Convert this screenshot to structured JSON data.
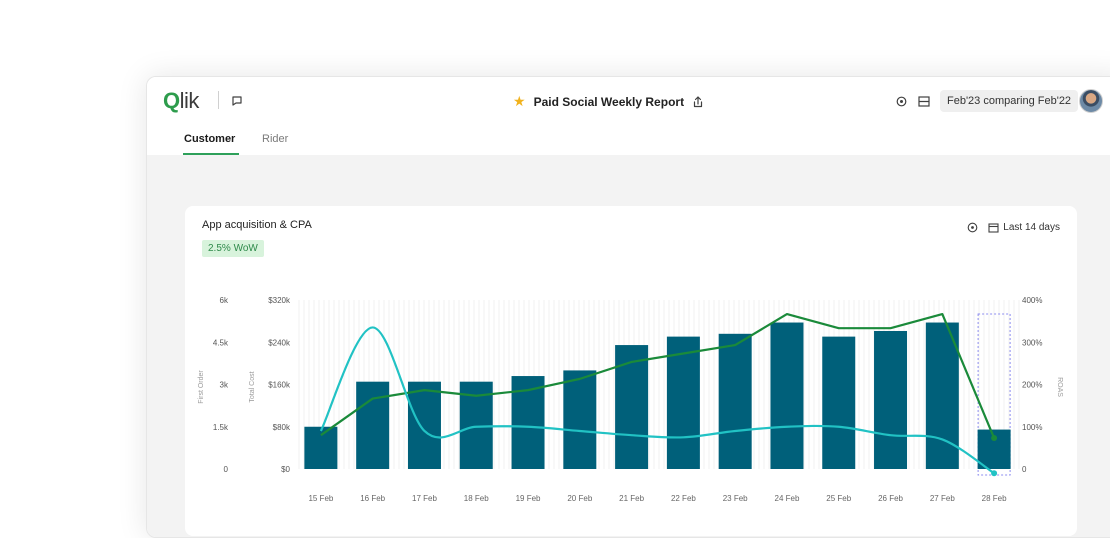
{
  "app": {
    "logo_q": "Q",
    "logo_rest": "lik",
    "report_title": "Paid Social Weekly Report",
    "compare_label": "Feb'23 comparing Feb'22"
  },
  "icons": {
    "comments": "speech-bubble-icon",
    "star": "star-icon",
    "share": "share-icon",
    "settings": "gear-icon",
    "layout": "panel-icon",
    "calendar": "calendar-icon"
  },
  "tabs": [
    {
      "label": "Customer",
      "active": true
    },
    {
      "label": "Rider",
      "active": false
    }
  ],
  "card": {
    "title": "App acquisition & CPA",
    "badge": "2.5% WoW",
    "range_label": "Last 14 days"
  },
  "colors": {
    "bar": "#00607a",
    "line_green": "#1a8a3a",
    "line_cyan": "#21c2c4",
    "accent": "#2ea05a"
  },
  "chart_data": {
    "type": "bar",
    "categories": [
      "15 Feb",
      "16 Feb",
      "17 Feb",
      "18 Feb",
      "19 Feb",
      "20 Feb",
      "21 Feb",
      "22 Feb",
      "23 Feb",
      "24 Feb",
      "25 Feb",
      "26 Feb",
      "27 Feb",
      "28 Feb"
    ],
    "series": [
      {
        "type": "bar",
        "values": [
          1500,
          3100,
          3100,
          3100,
          3300,
          3500,
          4400,
          4700,
          4800,
          5200,
          4700,
          4900,
          5200,
          1400
        ]
      },
      {
        "type": "line",
        "axis": "left",
        "values": [
          1200,
          2500,
          2800,
          2600,
          2800,
          3200,
          3800,
          4100,
          4400,
          5500,
          5000,
          5000,
          5500,
          1100
        ]
      },
      {
        "type": "line",
        "axis": "right",
        "values": [
          90,
          335,
          90,
          100,
          100,
          90,
          80,
          75,
          90,
          100,
          100,
          80,
          70,
          -10
        ]
      }
    ],
    "y_axes": {
      "first_order": {
        "label": "First Order",
        "ticks": [
          "0",
          "1.5k",
          "3k",
          "4.5k",
          "6k"
        ],
        "range": [
          0,
          6000
        ]
      },
      "total_cost": {
        "label": "Total Cost",
        "ticks": [
          "$0",
          "$80k",
          "$160k",
          "$240k",
          "$320k"
        ]
      },
      "roas": {
        "label": "ROAS",
        "ticks": [
          "0",
          "100%",
          "200%",
          "300%",
          "400%"
        ],
        "range": [
          0,
          400
        ]
      }
    },
    "grid": true,
    "highlighted_category": "28 Feb"
  }
}
